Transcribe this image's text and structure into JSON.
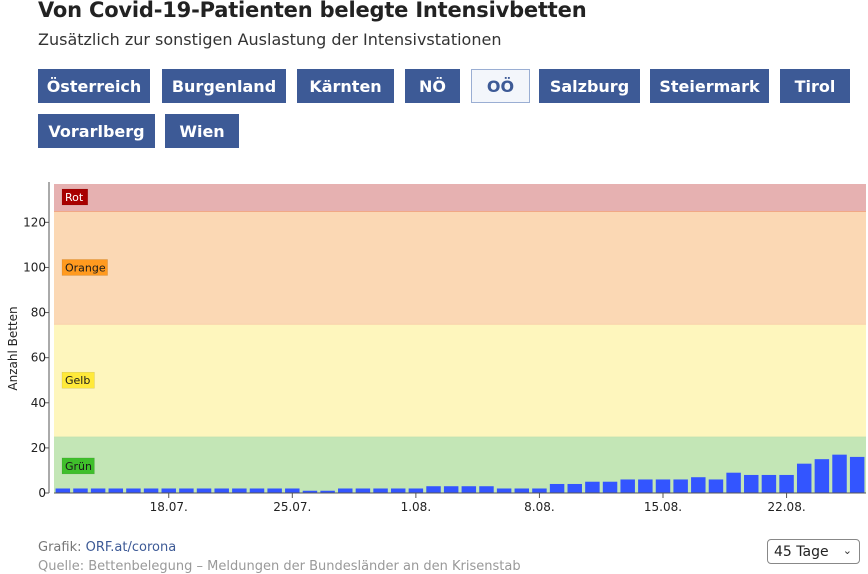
{
  "header": {
    "title": "Von Covid-19-Patienten belegte Intensivbetten",
    "subtitle": "Zusätzlich zur sonstigen Auslastung der Intensivstationen"
  },
  "regions": {
    "items": [
      {
        "label": "Österreich"
      },
      {
        "label": "Burgenland"
      },
      {
        "label": "Kärnten"
      },
      {
        "label": "NÖ"
      },
      {
        "label": "OÖ",
        "active": true
      },
      {
        "label": "Salzburg"
      },
      {
        "label": "Steiermark"
      },
      {
        "label": "Tirol"
      },
      {
        "label": "Vorarlberg"
      },
      {
        "label": "Wien"
      }
    ]
  },
  "footer": {
    "source_prefix": "Grafik:",
    "source_link": "ORF.at/corona",
    "cut_line": "Quelle: Bettenbelegung – Meldungen der Bundesländer an den Krisenstab"
  },
  "range_select": {
    "value": "45 Tage",
    "icon": "chevron-down-icon"
  },
  "colors": {
    "bar": "#3355ff",
    "zone_rot": "#e6b1b1",
    "zone_orange": "#fbd8b4",
    "zone_gelb": "#fef6bd",
    "zone_gruen": "#c3e6b6",
    "button": "#3d5a96"
  },
  "chart_data": {
    "type": "bar",
    "ylabel": "Anzahl Betten",
    "ylim": [
      0,
      137
    ],
    "yticks": [
      0,
      20,
      40,
      60,
      80,
      100,
      120
    ],
    "xtick_labels": [
      "18.07.",
      "25.07.",
      "1.08.",
      "8.08.",
      "15.08.",
      "22.08."
    ],
    "xtick_positions": [
      "2020-07-18",
      "2020-07-25",
      "2020-08-01",
      "2020-08-08",
      "2020-08-15",
      "2020-08-22"
    ],
    "x": [
      "2020-07-12",
      "2020-07-13",
      "2020-07-14",
      "2020-07-15",
      "2020-07-16",
      "2020-07-17",
      "2020-07-18",
      "2020-07-19",
      "2020-07-20",
      "2020-07-21",
      "2020-07-22",
      "2020-07-23",
      "2020-07-24",
      "2020-07-25",
      "2020-07-26",
      "2020-07-27",
      "2020-07-28",
      "2020-07-29",
      "2020-07-30",
      "2020-07-31",
      "2020-08-01",
      "2020-08-02",
      "2020-08-03",
      "2020-08-04",
      "2020-08-05",
      "2020-08-06",
      "2020-08-07",
      "2020-08-08",
      "2020-08-09",
      "2020-08-10",
      "2020-08-11",
      "2020-08-12",
      "2020-08-13",
      "2020-08-14",
      "2020-08-15",
      "2020-08-16",
      "2020-08-17",
      "2020-08-18",
      "2020-08-19",
      "2020-08-20",
      "2020-08-21",
      "2020-08-22",
      "2020-08-23",
      "2020-08-24",
      "2020-08-25",
      "2020-08-26"
    ],
    "values": [
      2,
      2,
      2,
      2,
      2,
      2,
      2,
      2,
      2,
      2,
      2,
      2,
      2,
      2,
      1,
      1,
      2,
      2,
      2,
      2,
      2,
      3,
      3,
      3,
      3,
      2,
      2,
      2,
      4,
      4,
      5,
      5,
      6,
      6,
      6,
      6,
      7,
      6,
      9,
      8,
      8,
      8,
      13,
      15,
      17,
      16
    ],
    "zones": [
      {
        "label": "Grün",
        "from": 0,
        "to": 25,
        "fill": "#c3e6b6",
        "line": "#bfe0b0",
        "badge": "#3fbf2b",
        "badge_text": "#1a1a1a"
      },
      {
        "label": "Gelb",
        "from": 25,
        "to": 75,
        "fill": "#fef6bd",
        "line": "#f9c9a8",
        "badge": "#ffe93a",
        "badge_text": "#1a1a1a"
      },
      {
        "label": "Orange",
        "from": 75,
        "to": 125,
        "fill": "#fbd8b4",
        "line": "#f0a07c",
        "badge": "#ff9a1f",
        "badge_text": "#1a1a1a"
      },
      {
        "label": "Rot",
        "from": 125,
        "to": 137,
        "fill": "#e6b1b1",
        "line": "#e6b1b1",
        "badge": "#a80000",
        "badge_text": "#ffffff"
      }
    ]
  }
}
